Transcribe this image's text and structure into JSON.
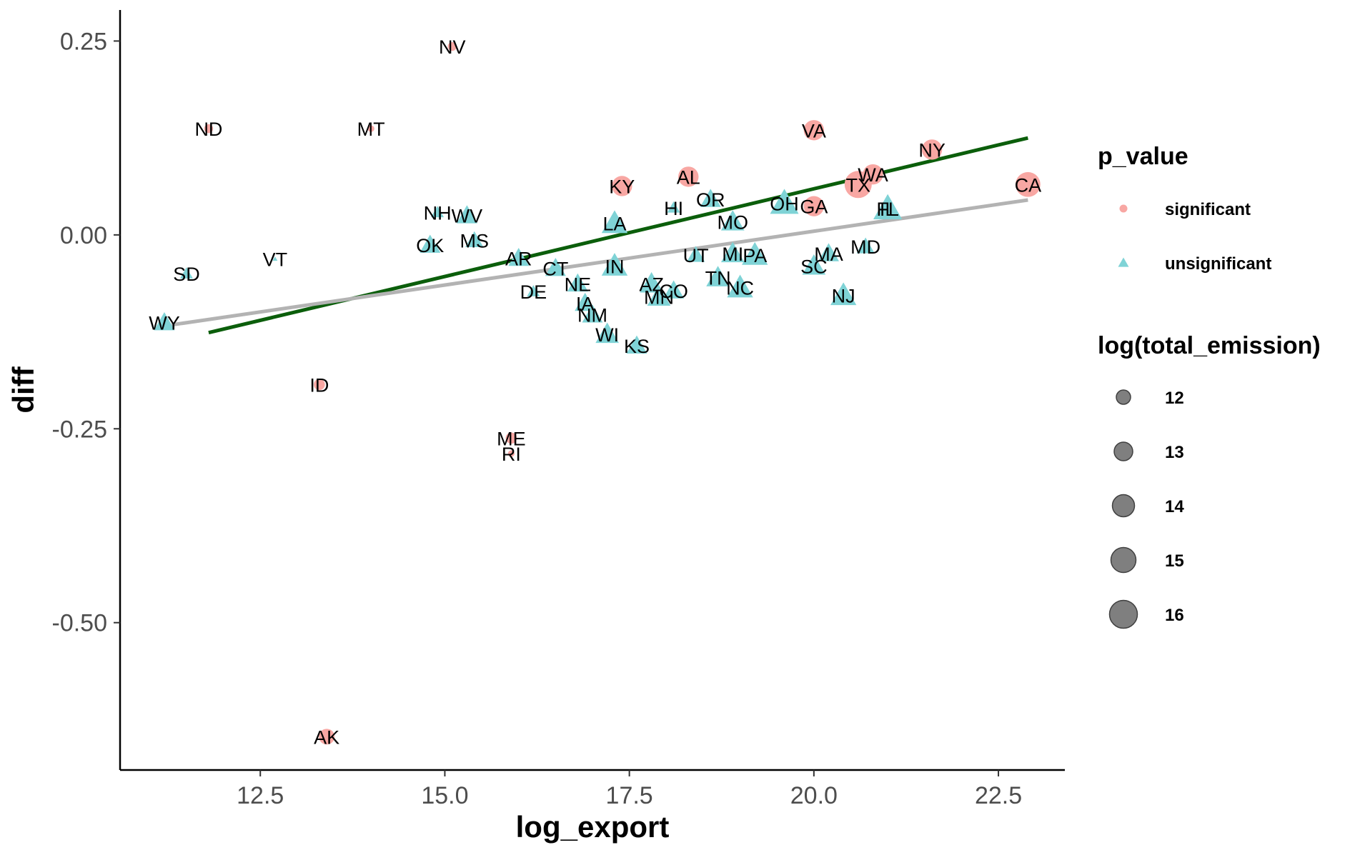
{
  "chart_data": {
    "type": "scatter",
    "xlabel": "log_export",
    "ylabel": "diff",
    "xlim": [
      10.6,
      23.4
    ],
    "ylim": [
      -0.69,
      0.29
    ],
    "x_ticks": [
      12.5,
      15.0,
      17.5,
      20.0,
      22.5
    ],
    "x_tick_labels": [
      "12.5",
      "15.0",
      "17.5",
      "20.0",
      "22.5"
    ],
    "y_ticks": [
      0.25,
      0.0,
      -0.25,
      -0.5
    ],
    "y_tick_labels": [
      "0.25",
      "0.00",
      "-0.25",
      "-0.50"
    ],
    "grid": false,
    "colors": {
      "significant": "#f8a7a3",
      "unsignificant": "#7fd3d6",
      "fit_green": "#0b5e0b",
      "fit_grey": "#b3b3b3"
    },
    "lines": [
      {
        "color": "#0b5e0b",
        "x": [
          11.8,
          22.9
        ],
        "y": [
          -0.126,
          0.125
        ]
      },
      {
        "color": "#b3b3b3",
        "x": [
          11.3,
          22.9
        ],
        "y": [
          -0.116,
          0.045
        ]
      }
    ],
    "points": [
      {
        "label": "NV",
        "x": 15.1,
        "y": 0.243,
        "group": "significant",
        "size": 12.0
      },
      {
        "label": "ND",
        "x": 11.8,
        "y": 0.137,
        "group": "significant",
        "size": 12.0
      },
      {
        "label": "MT",
        "x": 14.0,
        "y": 0.137,
        "group": "significant",
        "size": 11.5
      },
      {
        "label": "VA",
        "x": 20.0,
        "y": 0.135,
        "group": "significant",
        "size": 14.5
      },
      {
        "label": "NY",
        "x": 21.6,
        "y": 0.11,
        "group": "significant",
        "size": 14.5
      },
      {
        "label": "WA",
        "x": 20.8,
        "y": 0.078,
        "group": "significant",
        "size": 14.5
      },
      {
        "label": "TX",
        "x": 20.6,
        "y": 0.065,
        "group": "significant",
        "size": 16.0
      },
      {
        "label": "CA",
        "x": 22.9,
        "y": 0.065,
        "group": "significant",
        "size": 15.5
      },
      {
        "label": "AL",
        "x": 18.3,
        "y": 0.075,
        "group": "significant",
        "size": 14.5
      },
      {
        "label": "KY",
        "x": 17.4,
        "y": 0.063,
        "group": "significant",
        "size": 14.5
      },
      {
        "label": "GA",
        "x": 20.0,
        "y": 0.037,
        "group": "significant",
        "size": 14.5
      },
      {
        "label": "ID",
        "x": 13.3,
        "y": -0.193,
        "group": "significant",
        "size": 12.5
      },
      {
        "label": "ME",
        "x": 15.9,
        "y": -0.262,
        "group": "significant",
        "size": 12.5
      },
      {
        "label": "RI",
        "x": 15.9,
        "y": -0.282,
        "group": "significant",
        "size": 11.5
      },
      {
        "label": "AK",
        "x": 13.4,
        "y": -0.647,
        "group": "significant",
        "size": 13.5
      },
      {
        "label": "OR",
        "x": 18.6,
        "y": 0.046,
        "group": "unsignificant",
        "size": 14.0
      },
      {
        "label": "OH",
        "x": 19.6,
        "y": 0.041,
        "group": "unsignificant",
        "size": 15.5
      },
      {
        "label": "FL",
        "x": 21.0,
        "y": 0.034,
        "group": "unsignificant",
        "size": 15.5
      },
      {
        "label": "IL",
        "x": 21.0,
        "y": 0.034,
        "group": "unsignificant",
        "size": 15.5
      },
      {
        "label": "HI",
        "x": 18.1,
        "y": 0.035,
        "group": "unsignificant",
        "size": 12.5
      },
      {
        "label": "NH",
        "x": 14.9,
        "y": 0.029,
        "group": "unsignificant",
        "size": 12.5
      },
      {
        "label": "WV",
        "x": 15.3,
        "y": 0.025,
        "group": "unsignificant",
        "size": 14.0
      },
      {
        "label": "LA",
        "x": 17.3,
        "y": 0.015,
        "group": "unsignificant",
        "size": 15.0
      },
      {
        "label": "MO",
        "x": 18.9,
        "y": 0.017,
        "group": "unsignificant",
        "size": 14.5
      },
      {
        "label": "MS",
        "x": 15.4,
        "y": -0.007,
        "group": "unsignificant",
        "size": 13.5
      },
      {
        "label": "OK",
        "x": 14.8,
        "y": -0.013,
        "group": "unsignificant",
        "size": 14.0
      },
      {
        "label": "MD",
        "x": 20.7,
        "y": -0.015,
        "group": "unsignificant",
        "size": 13.5
      },
      {
        "label": "MA",
        "x": 20.2,
        "y": -0.024,
        "group": "unsignificant",
        "size": 14.0
      },
      {
        "label": "MI",
        "x": 18.9,
        "y": -0.024,
        "group": "unsignificant",
        "size": 14.5
      },
      {
        "label": "PA",
        "x": 19.2,
        "y": -0.026,
        "group": "unsignificant",
        "size": 15.0
      },
      {
        "label": "UT",
        "x": 18.4,
        "y": -0.026,
        "group": "unsignificant",
        "size": 13.5
      },
      {
        "label": "VT",
        "x": 12.7,
        "y": -0.031,
        "group": "unsignificant",
        "size": 11.0
      },
      {
        "label": "AR",
        "x": 16.0,
        "y": -0.03,
        "group": "unsignificant",
        "size": 14.0
      },
      {
        "label": "SC",
        "x": 20.0,
        "y": -0.04,
        "group": "unsignificant",
        "size": 14.5
      },
      {
        "label": "IN",
        "x": 17.3,
        "y": -0.04,
        "group": "unsignificant",
        "size": 15.0
      },
      {
        "label": "CT",
        "x": 16.5,
        "y": -0.043,
        "group": "unsignificant",
        "size": 14.0
      },
      {
        "label": "SD",
        "x": 11.5,
        "y": -0.05,
        "group": "unsignificant",
        "size": 12.5
      },
      {
        "label": "NE",
        "x": 16.8,
        "y": -0.063,
        "group": "unsignificant",
        "size": 14.0
      },
      {
        "label": "AZ",
        "x": 17.8,
        "y": -0.063,
        "group": "unsignificant",
        "size": 14.5
      },
      {
        "label": "TN",
        "x": 18.7,
        "y": -0.055,
        "group": "unsignificant",
        "size": 14.5
      },
      {
        "label": "NC",
        "x": 19.0,
        "y": -0.068,
        "group": "unsignificant",
        "size": 15.0
      },
      {
        "label": "CO",
        "x": 18.1,
        "y": -0.072,
        "group": "unsignificant",
        "size": 14.0
      },
      {
        "label": "MN",
        "x": 17.9,
        "y": -0.08,
        "group": "unsignificant",
        "size": 14.5
      },
      {
        "label": "DE",
        "x": 16.2,
        "y": -0.073,
        "group": "unsignificant",
        "size": 12.5
      },
      {
        "label": "NJ",
        "x": 20.4,
        "y": -0.078,
        "group": "unsignificant",
        "size": 15.0
      },
      {
        "label": "IA",
        "x": 16.9,
        "y": -0.088,
        "group": "unsignificant",
        "size": 14.0
      },
      {
        "label": "NM",
        "x": 17.0,
        "y": -0.103,
        "group": "unsignificant",
        "size": 14.0
      },
      {
        "label": "WY",
        "x": 11.2,
        "y": -0.113,
        "group": "unsignificant",
        "size": 14.0
      },
      {
        "label": "WI",
        "x": 17.2,
        "y": -0.128,
        "group": "unsignificant",
        "size": 14.5
      },
      {
        "label": "KS",
        "x": 17.6,
        "y": -0.143,
        "group": "unsignificant",
        "size": 14.0
      }
    ],
    "legend": {
      "placement": "right",
      "color_title": "p_value",
      "color_items": [
        {
          "label": "significant",
          "group": "significant"
        },
        {
          "label": "unsignificant",
          "group": "unsignificant"
        }
      ],
      "size_title": "log(total_emission)",
      "size_items": [
        {
          "label": "12",
          "size": 12
        },
        {
          "label": "13",
          "size": 13
        },
        {
          "label": "14",
          "size": 14
        },
        {
          "label": "15",
          "size": 15
        },
        {
          "label": "16",
          "size": 16
        }
      ]
    }
  }
}
